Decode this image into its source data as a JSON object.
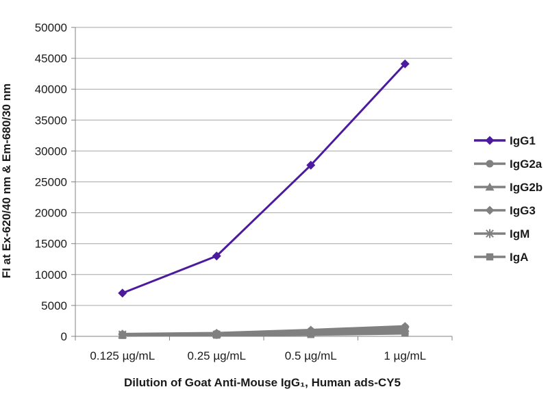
{
  "chart_data": {
    "type": "line",
    "title": "",
    "xlabel": "Dilution of Goat Anti-Mouse IgG₁, Human ads-CY5",
    "ylabel": "FI at Ex-620/40 nm & Em-680/30 nm",
    "categories": [
      "0.125 µg/mL",
      "0.25 µg/mL",
      "0.5 µg/mL",
      "1 µg/mL"
    ],
    "ylim": [
      0,
      50000
    ],
    "yticks": [
      "0",
      "5000",
      "10000",
      "15000",
      "20000",
      "25000",
      "30000",
      "35000",
      "40000",
      "45000",
      "50000"
    ],
    "grid": true,
    "legend_position": "right",
    "series": [
      {
        "name": "IgG1",
        "marker": "diamond",
        "color": "#4b1a9e",
        "values": [
          7000,
          13000,
          27700,
          44100
        ]
      },
      {
        "name": "IgG2a",
        "marker": "circle",
        "color": "#808080",
        "values": [
          300,
          450,
          900,
          1500
        ]
      },
      {
        "name": "IgG2b",
        "marker": "triangle",
        "color": "#808080",
        "values": [
          250,
          400,
          800,
          1300
        ]
      },
      {
        "name": "IgG3",
        "marker": "diamond",
        "color": "#808080",
        "values": [
          350,
          500,
          1000,
          1600
        ]
      },
      {
        "name": "IgM",
        "marker": "star",
        "color": "#808080",
        "values": [
          300,
          300,
          600,
          900
        ]
      },
      {
        "name": "IgA",
        "marker": "square",
        "color": "#808080",
        "values": [
          150,
          200,
          300,
          500
        ]
      }
    ]
  }
}
